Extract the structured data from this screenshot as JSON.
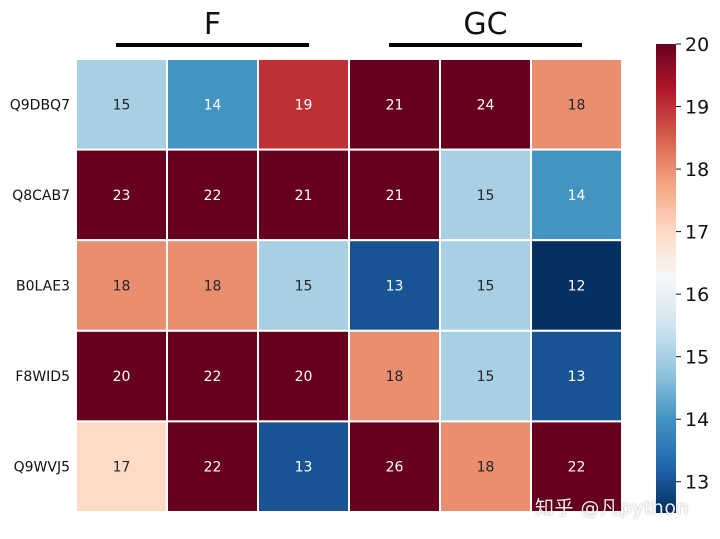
{
  "chart_data": {
    "type": "heatmap",
    "rows": [
      "Q9DBQ7",
      "Q8CAB7",
      "B0LAE3",
      "F8WID5",
      "Q9WVJ5"
    ],
    "columns": [
      "",
      "",
      "",
      "",
      "",
      ""
    ],
    "column_groups": [
      {
        "label": "F",
        "columns": [
          0,
          1,
          2
        ]
      },
      {
        "label": "GC",
        "columns": [
          3,
          4,
          5
        ]
      }
    ],
    "values": [
      [
        15,
        14,
        19,
        21,
        24,
        18
      ],
      [
        23,
        22,
        21,
        21,
        15,
        14
      ],
      [
        18,
        18,
        15,
        13,
        15,
        12
      ],
      [
        20,
        22,
        20,
        18,
        15,
        13
      ],
      [
        17,
        22,
        13,
        26,
        18,
        22
      ]
    ],
    "colormap": "RdBu_r",
    "vmin": 12.5,
    "vmax": 20,
    "colorbar_ticks": [
      13,
      14,
      15,
      16,
      17,
      18,
      19,
      20
    ],
    "annotate": true,
    "cell_border_color": "#ffffff"
  },
  "watermark": "知乎 @凡python"
}
